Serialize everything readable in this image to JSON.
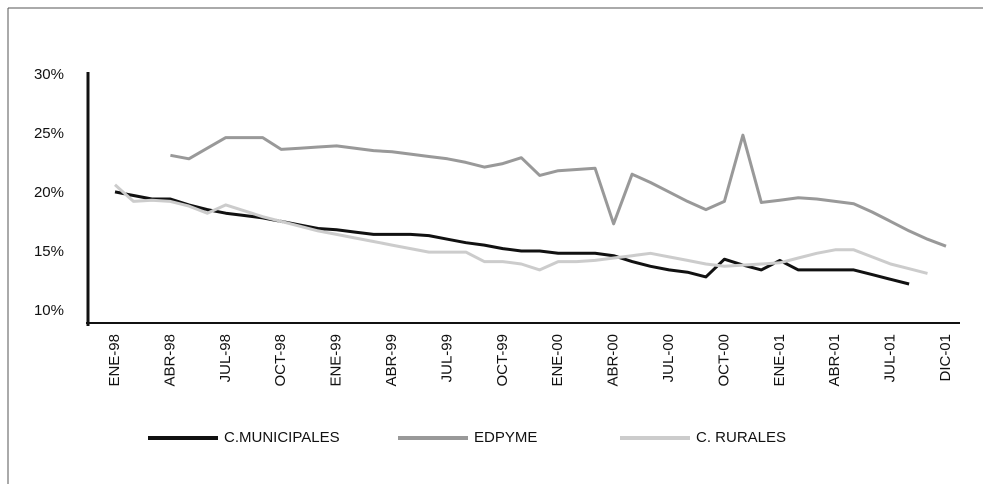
{
  "chart_data": {
    "type": "line",
    "categories": [
      "ENE-98",
      null,
      null,
      "ABR-98",
      null,
      null,
      "JUL-98",
      null,
      null,
      "OCT-98",
      null,
      null,
      "ENE-99",
      null,
      null,
      "ABR-99",
      null,
      null,
      "JUL-99",
      null,
      null,
      "OCT-99",
      null,
      null,
      "ENE-00",
      null,
      null,
      "ABR-00",
      null,
      null,
      "JUL-00",
      null,
      null,
      "OCT-00",
      null,
      null,
      "ENE-01",
      null,
      null,
      "ABR-01",
      null,
      null,
      "JUL-01",
      null,
      null,
      "DIC-01"
    ],
    "series": [
      {
        "name": "C.MUNICIPALES",
        "color": "#111111",
        "values": [
          20.1,
          19.8,
          19.5,
          19.5,
          19.0,
          18.6,
          18.3,
          18.1,
          17.9,
          17.6,
          17.3,
          17.0,
          16.9,
          16.7,
          16.5,
          16.5,
          16.5,
          16.4,
          16.1,
          15.8,
          15.6,
          15.3,
          15.1,
          15.1,
          14.9,
          14.9,
          14.9,
          14.7,
          14.2,
          13.8,
          13.5,
          13.3,
          12.9,
          14.4,
          13.9,
          13.5,
          14.3,
          13.5,
          13.5,
          13.5,
          13.5,
          13.1,
          12.7,
          12.3,
          null,
          null
        ]
      },
      {
        "name": "EDPYME",
        "color": "#999999",
        "values": [
          null,
          null,
          null,
          23.2,
          22.9,
          23.8,
          24.7,
          24.7,
          24.7,
          23.7,
          23.8,
          23.9,
          24.0,
          23.8,
          23.6,
          23.5,
          23.3,
          23.1,
          22.9,
          22.6,
          22.2,
          22.5,
          23.0,
          21.5,
          21.9,
          22.0,
          22.1,
          17.4,
          21.6,
          20.9,
          20.1,
          19.3,
          18.6,
          19.3,
          24.9,
          19.2,
          19.4,
          19.6,
          19.5,
          19.3,
          19.1,
          18.4,
          17.6,
          16.8,
          16.1,
          15.5
        ]
      },
      {
        "name": "C. RURALES",
        "color": "#cccccc",
        "values": [
          20.7,
          19.3,
          19.4,
          19.3,
          18.9,
          18.3,
          19.0,
          18.5,
          18.0,
          17.6,
          17.2,
          16.8,
          16.5,
          16.2,
          15.9,
          15.6,
          15.3,
          15.0,
          15.0,
          15.0,
          14.2,
          14.2,
          14.0,
          13.5,
          14.2,
          14.2,
          14.3,
          14.5,
          14.7,
          14.9,
          14.6,
          14.3,
          14.0,
          13.8,
          13.9,
          14.0,
          14.1,
          14.5,
          14.9,
          15.2,
          15.2,
          14.6,
          14.0,
          13.6,
          13.2,
          null
        ]
      }
    ],
    "ylim": [
      9,
      30
    ],
    "yticks": [
      {
        "value": 10,
        "label": "10%"
      },
      {
        "value": 15,
        "label": "15%"
      },
      {
        "value": 20,
        "label": "20%"
      },
      {
        "value": 25,
        "label": "25%"
      },
      {
        "value": 30,
        "label": "30%"
      }
    ]
  }
}
